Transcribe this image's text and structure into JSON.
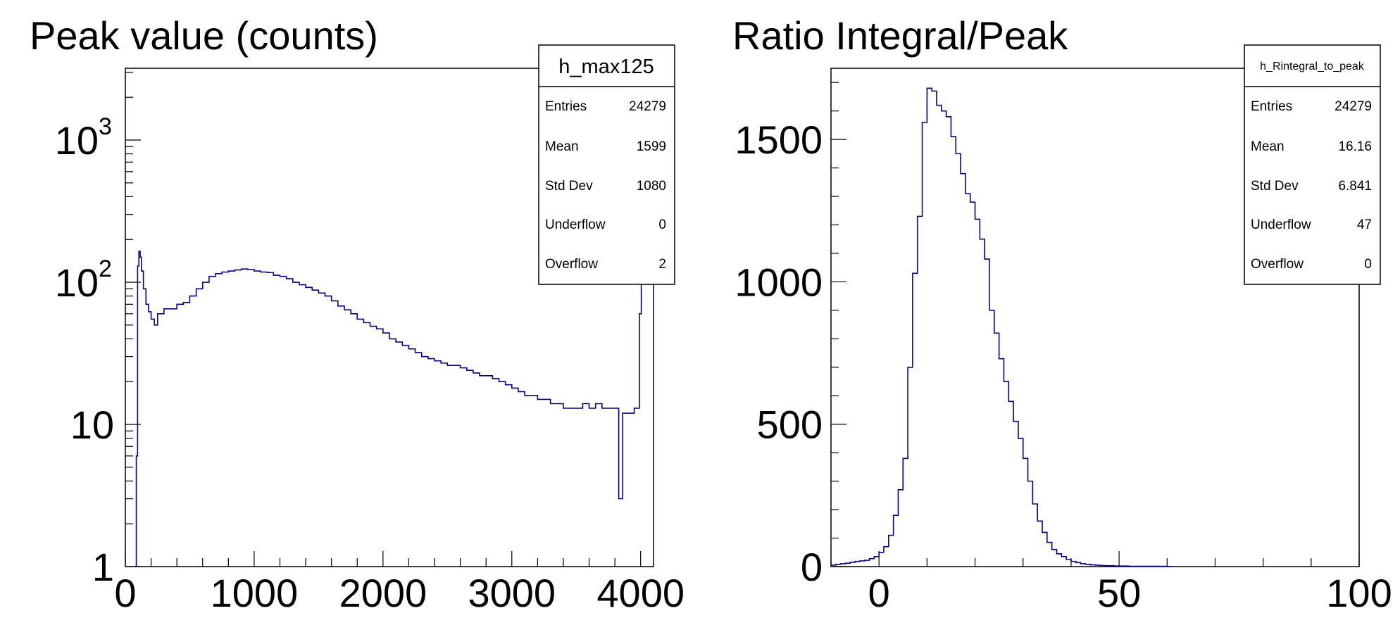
{
  "chart_data": [
    {
      "type": "histogram",
      "title": "Peak value (counts)",
      "xlabel": "",
      "ylabel": "",
      "log_y": true,
      "xlim": [
        0,
        4100
      ],
      "ylim": [
        1,
        3200
      ],
      "x_ticks": [
        {
          "value": 0,
          "label": "0"
        },
        {
          "value": 1000,
          "label": "1000"
        },
        {
          "value": 2000,
          "label": "2000"
        },
        {
          "value": 3000,
          "label": "3000"
        },
        {
          "value": 4000,
          "label": "4000"
        }
      ],
      "y_ticks": [
        {
          "value": 1,
          "label": "1",
          "exp": ""
        },
        {
          "value": 10,
          "label": "10",
          "exp": ""
        },
        {
          "value": 100,
          "label": "10",
          "exp": "2"
        },
        {
          "value": 1000,
          "label": "10",
          "exp": "3"
        }
      ],
      "line_color": "#000099",
      "series": [
        {
          "values_x": [
            75,
            85,
            95,
            105,
            115,
            125,
            140,
            160,
            180,
            200,
            225,
            250,
            300,
            350,
            400,
            450,
            500,
            550,
            600,
            650,
            700,
            750,
            800,
            850,
            900,
            950,
            1000,
            1050,
            1100,
            1150,
            1200,
            1250,
            1300,
            1350,
            1400,
            1450,
            1500,
            1550,
            1600,
            1650,
            1700,
            1750,
            1800,
            1850,
            1900,
            1950,
            2000,
            2050,
            2100,
            2150,
            2200,
            2250,
            2300,
            2350,
            2400,
            2450,
            2500,
            2550,
            2600,
            2650,
            2700,
            2750,
            2800,
            2850,
            2900,
            2950,
            3000,
            3050,
            3100,
            3150,
            3200,
            3250,
            3300,
            3350,
            3400,
            3450,
            3500,
            3550,
            3600,
            3650,
            3700,
            3750,
            3800,
            3830,
            3860,
            3900,
            3950,
            3990,
            4005,
            4020
          ],
          "values_y": [
            1,
            6,
            130,
            165,
            150,
            120,
            90,
            70,
            62,
            55,
            50,
            60,
            65,
            65,
            70,
            72,
            80,
            90,
            100,
            110,
            115,
            118,
            120,
            122,
            124,
            123,
            120,
            118,
            117,
            112,
            110,
            106,
            100,
            96,
            92,
            88,
            84,
            80,
            74,
            68,
            64,
            60,
            55,
            52,
            49,
            47,
            44,
            40,
            38,
            36,
            34,
            32,
            30,
            29,
            28,
            27,
            26,
            26,
            25,
            24,
            23,
            22,
            22,
            21,
            20,
            19,
            18,
            17,
            16,
            16,
            15,
            15,
            14,
            14,
            13,
            13,
            13,
            14,
            13,
            14,
            13,
            13,
            13,
            3,
            12,
            12,
            13,
            60,
            120,
            140
          ]
        }
      ],
      "stats": {
        "name": "h_max125",
        "rows": [
          {
            "label": "Entries",
            "value": "24279"
          },
          {
            "label": "Mean",
            "value": "1599"
          },
          {
            "label": "Std Dev",
            "value": "1080"
          },
          {
            "label": "Underflow",
            "value": "0"
          },
          {
            "label": "Overflow",
            "value": "2"
          }
        ]
      }
    },
    {
      "type": "histogram",
      "title": "Ratio Integral/Peak",
      "xlabel": "",
      "ylabel": "",
      "log_y": false,
      "xlim": [
        -10,
        100
      ],
      "ylim": [
        0,
        1750
      ],
      "x_ticks": [
        {
          "value": 0,
          "label": "0"
        },
        {
          "value": 50,
          "label": "50"
        },
        {
          "value": 100,
          "label": "100"
        }
      ],
      "y_ticks": [
        {
          "value": 0,
          "label": "0"
        },
        {
          "value": 500,
          "label": "500"
        },
        {
          "value": 1000,
          "label": "1000"
        },
        {
          "value": 1500,
          "label": "1500"
        }
      ],
      "line_color": "#000099",
      "series": [
        {
          "bin_low": -10,
          "bin_width": 1,
          "values": [
            5,
            8,
            10,
            12,
            15,
            18,
            20,
            22,
            28,
            35,
            50,
            70,
            110,
            180,
            270,
            380,
            700,
            1030,
            1230,
            1560,
            1680,
            1670,
            1620,
            1600,
            1580,
            1510,
            1450,
            1380,
            1310,
            1280,
            1220,
            1150,
            1080,
            900,
            820,
            730,
            650,
            580,
            510,
            450,
            380,
            300,
            220,
            160,
            120,
            85,
            60,
            45,
            35,
            25,
            18,
            14,
            10,
            8,
            6,
            5,
            4,
            3,
            3,
            2,
            2,
            2,
            1,
            1,
            1,
            1,
            1,
            1,
            1,
            1,
            0
          ]
        }
      ],
      "stats": {
        "name": "h_Rintegral_to_peak",
        "rows": [
          {
            "label": "Entries",
            "value": "24279"
          },
          {
            "label": "Mean",
            "value": "16.16"
          },
          {
            "label": "Std Dev",
            "value": "6.841"
          },
          {
            "label": "Underflow",
            "value": "47"
          },
          {
            "label": "Overflow",
            "value": "0"
          }
        ]
      }
    }
  ]
}
